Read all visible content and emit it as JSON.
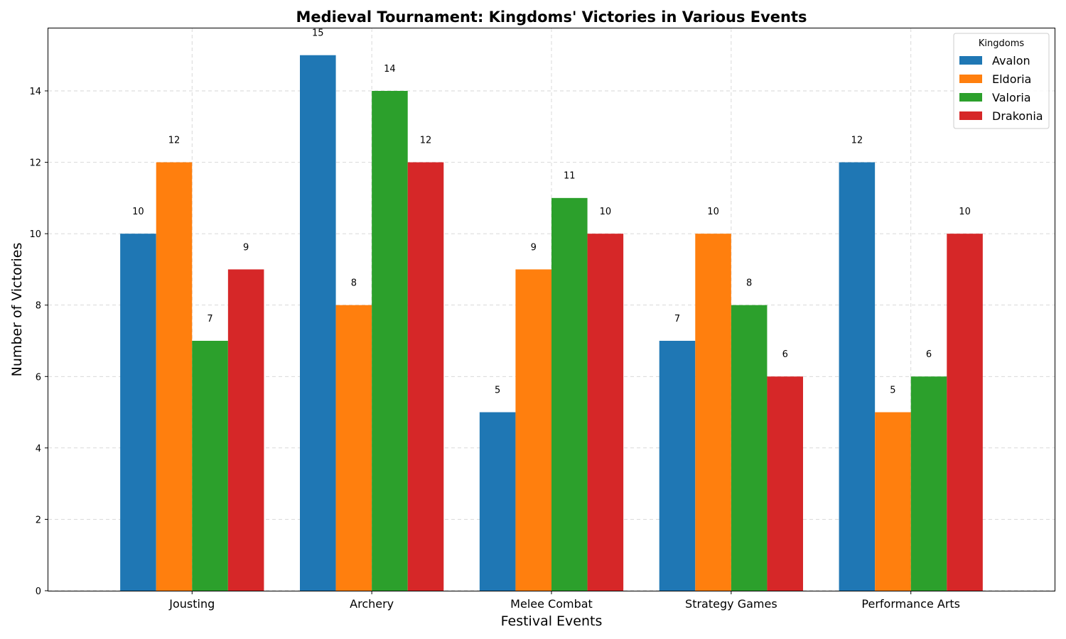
{
  "chart_data": {
    "type": "bar",
    "title": "Medieval Tournament: Kingdoms' Victories in Various Events",
    "xlabel": "Festival Events",
    "ylabel": "Number of Victories",
    "categories": [
      "Jousting",
      "Archery",
      "Melee Combat",
      "Strategy Games",
      "Performance Arts"
    ],
    "series": [
      {
        "name": "Avalon",
        "color": "#1f77b4",
        "values": [
          10,
          15,
          5,
          7,
          12
        ]
      },
      {
        "name": "Eldoria",
        "color": "#ff7f0e",
        "values": [
          12,
          8,
          9,
          10,
          5
        ]
      },
      {
        "name": "Valoria",
        "color": "#2ca02c",
        "values": [
          7,
          14,
          11,
          8,
          6
        ]
      },
      {
        "name": "Drakonia",
        "color": "#d62728",
        "values": [
          9,
          12,
          10,
          6,
          10
        ]
      }
    ],
    "ylim": [
      0,
      15.75
    ],
    "yticks": [
      0,
      2,
      4,
      6,
      8,
      10,
      12,
      14
    ],
    "grid": true,
    "legend": {
      "title": "Kingdoms",
      "placement": "top-right"
    }
  }
}
